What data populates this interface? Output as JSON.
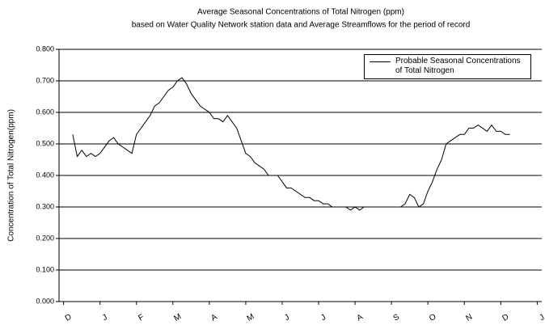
{
  "chart_data": {
    "type": "line",
    "title": "Average Seasonal Concentrations of Total Nitrogen (ppm)",
    "subtitle": "based on Water Quality Network station data and Average Streamflows for the period of record",
    "y_label": "Concentration of Total Nitrogen(ppm)",
    "categories": [
      "D",
      null,
      null,
      null,
      null,
      null,
      null,
      null,
      "J",
      null,
      null,
      null,
      null,
      null,
      null,
      null,
      "F",
      null,
      null,
      null,
      null,
      null,
      null,
      null,
      "M",
      null,
      null,
      null,
      null,
      null,
      null,
      null,
      "A",
      null,
      null,
      null,
      null,
      null,
      null,
      null,
      "M",
      null,
      null,
      null,
      null,
      null,
      null,
      null,
      "J",
      null,
      null,
      null,
      null,
      null,
      null,
      null,
      "J",
      null,
      null,
      null,
      null,
      null,
      null,
      null,
      "A",
      null,
      null,
      null,
      null,
      null,
      null,
      null,
      "S",
      null,
      null,
      null,
      null,
      null,
      null,
      null,
      "O",
      null,
      null,
      null,
      null,
      null,
      null,
      null,
      "N",
      null,
      null,
      null,
      null,
      null,
      null,
      null,
      "D",
      null,
      null,
      null,
      null,
      null,
      null,
      null,
      "J"
    ],
    "series": [
      {
        "name": "Probable Seasonal Concentrations of Total Nitrogen",
        "color": "#000000",
        "values": [
          null,
          null,
          0.53,
          0.46,
          0.48,
          0.46,
          0.47,
          0.46,
          0.47,
          0.49,
          0.51,
          0.52,
          0.5,
          0.49,
          0.48,
          0.47,
          0.53,
          0.55,
          0.57,
          0.59,
          0.62,
          0.63,
          0.65,
          0.67,
          0.68,
          0.7,
          0.71,
          0.69,
          0.66,
          0.64,
          0.62,
          0.61,
          0.6,
          0.58,
          0.58,
          0.57,
          0.59,
          0.57,
          0.55,
          0.51,
          0.47,
          0.46,
          0.44,
          0.43,
          0.42,
          0.4,
          0.4,
          0.4,
          0.38,
          0.36,
          0.36,
          0.35,
          0.34,
          0.33,
          0.33,
          0.32,
          0.32,
          0.31,
          0.31,
          0.3,
          0.3,
          0.3,
          0.3,
          0.29,
          0.3,
          0.29,
          0.3,
          0.3,
          0.3,
          0.3,
          0.3,
          0.3,
          0.3,
          0.3,
          0.3,
          0.31,
          0.34,
          0.33,
          0.3,
          0.31,
          0.35,
          0.38,
          0.42,
          0.45,
          0.5,
          0.51,
          0.52,
          0.53,
          0.53,
          0.55,
          0.55,
          0.56,
          0.55,
          0.54,
          0.56,
          0.54,
          0.54,
          0.53,
          0.53,
          null,
          null,
          null,
          null,
          null,
          null
        ]
      }
    ],
    "ylim": [
      0,
      0.8
    ],
    "yticks": [
      {
        "value": 0,
        "label": "0.000"
      },
      {
        "value": 0.1,
        "label": "0.100"
      },
      {
        "value": 0.2,
        "label": "0.200"
      },
      {
        "value": 0.3,
        "label": "0.300"
      },
      {
        "value": 0.4,
        "label": "0.400"
      },
      {
        "value": 0.5,
        "label": "0.500"
      },
      {
        "value": 0.6,
        "label": "0.600"
      },
      {
        "value": 0.7,
        "label": "0.700"
      },
      {
        "value": 0.8,
        "label": "0.800"
      }
    ],
    "grid": true,
    "legend": "top-right"
  }
}
